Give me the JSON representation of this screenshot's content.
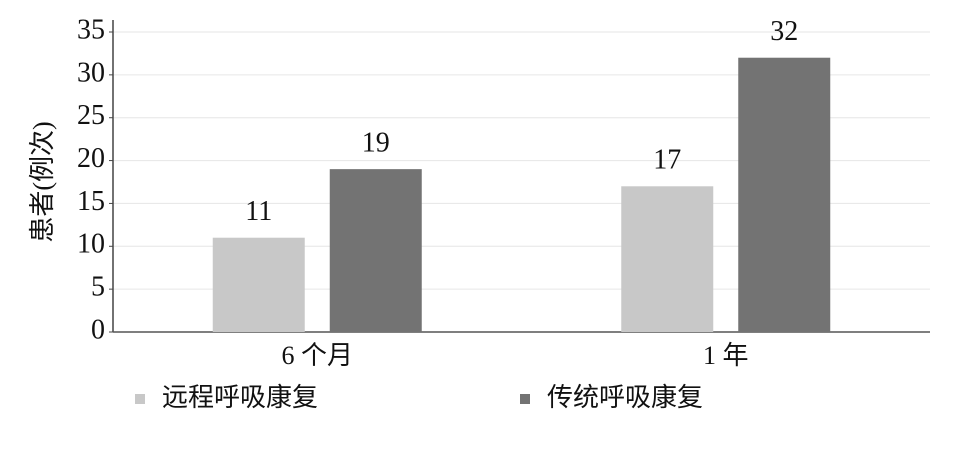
{
  "chart_data": {
    "type": "bar",
    "y_label": "患者(例次)",
    "categories": [
      "6 个月",
      "1 年"
    ],
    "series": [
      {
        "name": "远程呼吸康复",
        "color": "#c8c8c8",
        "values": [
          11,
          17
        ]
      },
      {
        "name": "传统呼吸康复",
        "color": "#737373",
        "values": [
          19,
          32
        ]
      }
    ],
    "ylim": [
      0,
      35
    ],
    "yticks": [
      0,
      5,
      10,
      15,
      20,
      25,
      30,
      35
    ],
    "grid": true
  }
}
